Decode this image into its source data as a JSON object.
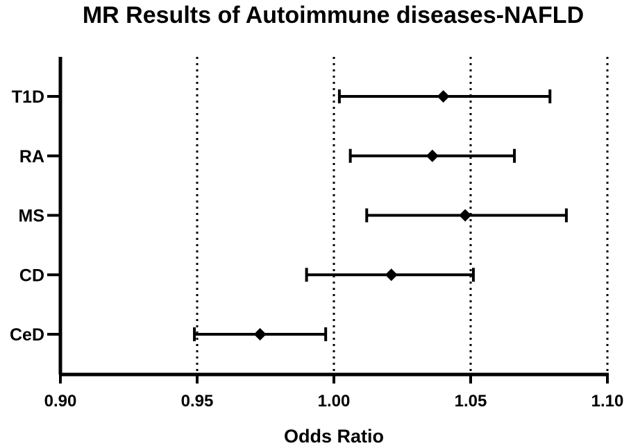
{
  "chart_data": {
    "type": "forest",
    "title": "MR Results of Autoimmune diseases-NAFLD",
    "xlabel": "Odds Ratio",
    "ylabel": "",
    "xlim": [
      0.9,
      1.1
    ],
    "xticks": [
      "0.90",
      "0.95",
      "1.00",
      "1.05",
      "1.10"
    ],
    "reference_lines": [
      0.95,
      1.0,
      1.05,
      1.1
    ],
    "reference_line_style": "dotted",
    "grid": false,
    "legend": "none",
    "marker": "diamond",
    "color": "#000000",
    "categories": [
      "T1D",
      "RA",
      "MS",
      "CD",
      "CeD"
    ],
    "series": [
      {
        "or": [
          1.04,
          1.036,
          1.048,
          1.021,
          0.973
        ],
        "ci_lower": [
          1.002,
          1.006,
          1.012,
          0.99,
          0.949
        ],
        "ci_upper": [
          1.079,
          1.066,
          1.085,
          1.051,
          0.997
        ]
      }
    ]
  }
}
